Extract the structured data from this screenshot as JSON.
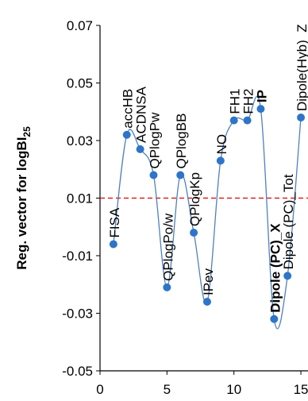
{
  "chart_data": {
    "type": "line",
    "title": "",
    "xlabel": "",
    "ylabel": "Reg. vector for  logBI",
    "ylabel_subscript": "25",
    "xlim": [
      0,
      15
    ],
    "ylim": [
      -0.05,
      0.07
    ],
    "x_ticks": [
      "0",
      "5",
      "10",
      "15"
    ],
    "y_ticks": [
      "-0.05",
      "-0.03",
      "-0.01",
      "0.01",
      "0.03",
      "0.05",
      "0.07"
    ],
    "grid": false,
    "smooth": true,
    "reference_line": {
      "y": 0.01,
      "style": "dashed",
      "color": "#e0201b"
    },
    "colors": {
      "line": "#4f81bd",
      "marker": "#2e75c9",
      "axis": "#000000"
    },
    "series": [
      {
        "x": [
          1,
          2,
          3,
          4,
          5,
          6,
          7,
          8,
          9,
          10,
          11,
          12,
          13,
          14,
          15
        ],
        "values": [
          -0.006,
          0.032,
          0.027,
          0.018,
          -0.021,
          0.018,
          -0.002,
          -0.026,
          0.023,
          0.037,
          0.037,
          0.041,
          -0.032,
          -0.017,
          0.038
        ]
      }
    ],
    "point_labels": [
      {
        "x": 1,
        "text": "FISA",
        "bold": false
      },
      {
        "x": 2,
        "text": "accHB",
        "bold": false
      },
      {
        "x": 3,
        "text": "ACDNSA",
        "bold": false
      },
      {
        "x": 4,
        "text": "QPlogPw",
        "bold": false
      },
      {
        "x": 5,
        "text": "QPlogPo/w",
        "bold": false
      },
      {
        "x": 6,
        "text": "QPlogBB",
        "bold": false
      },
      {
        "x": 7,
        "text": "QPlogKp",
        "bold": false
      },
      {
        "x": 8,
        "text": "IPev",
        "bold": false
      },
      {
        "x": 9,
        "text": "NO",
        "bold": false
      },
      {
        "x": 10,
        "text": "FH1",
        "bold": false
      },
      {
        "x": 11,
        "text": "FH2",
        "bold": false
      },
      {
        "x": 12,
        "text": "IP",
        "bold": true
      },
      {
        "x": 13,
        "text": "Dipole (PC)_X",
        "bold": true
      },
      {
        "x": 14,
        "text": "Dipole (PC)_Tot",
        "bold": false
      },
      {
        "x": 15,
        "text": "Dipole(Hyb)_Z",
        "bold": false
      }
    ]
  }
}
